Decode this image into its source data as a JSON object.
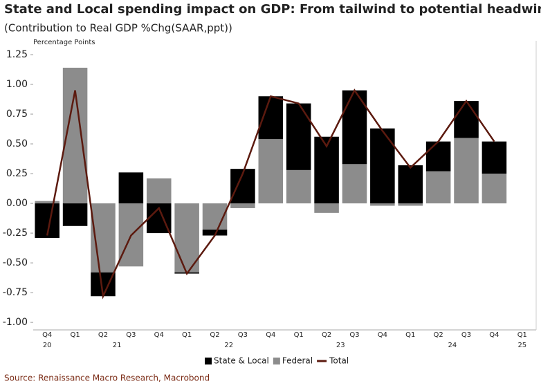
{
  "chart_data": {
    "type": "stacked-bar-line",
    "title": "State and Local spending impact on GDP: From tailwind to potential headwind",
    "subtitle": "(Contribution to Real GDP %Chg(SAAR,ppt))",
    "y_axis_label": "Percentage Points",
    "source": "Source: Renaissance Macro Research, Macrobond",
    "categories": [
      "Q4",
      "Q1",
      "Q2",
      "Q3",
      "Q4",
      "Q1",
      "Q2",
      "Q3",
      "Q4",
      "Q1",
      "Q2",
      "Q3",
      "Q4",
      "Q1",
      "Q2",
      "Q3",
      "Q4",
      "Q1"
    ],
    "years": [
      "20",
      "21",
      "22",
      "23",
      "24",
      "25"
    ],
    "series": [
      {
        "name": "State & Local",
        "color": "#000000",
        "mark": "bar",
        "values": [
          -0.29,
          -0.19,
          -0.2,
          0.26,
          -0.25,
          -0.01,
          -0.05,
          0.29,
          0.36,
          0.56,
          0.56,
          0.62,
          0.63,
          0.32,
          0.25,
          0.31,
          0.27,
          null
        ]
      },
      {
        "name": "Federal",
        "color": "#8c8c8c",
        "mark": "bar",
        "values": [
          0.02,
          1.14,
          -0.58,
          -0.53,
          0.21,
          -0.58,
          -0.22,
          -0.04,
          0.54,
          0.28,
          -0.08,
          0.33,
          -0.02,
          -0.02,
          0.27,
          0.55,
          0.25,
          null
        ]
      },
      {
        "name": "Total",
        "color": "#5c1a0f",
        "mark": "line",
        "values": [
          -0.27,
          0.95,
          -0.78,
          -0.27,
          -0.04,
          -0.59,
          -0.27,
          0.25,
          0.9,
          0.84,
          0.48,
          0.95,
          0.61,
          0.3,
          0.52,
          0.86,
          0.52,
          null
        ]
      }
    ],
    "ylim": [
      -1.04,
      1.25
    ],
    "yticks": [
      1.25,
      {
        "value": 1.0,
        "label": "1.00"
      },
      0.75,
      {
        "value": 0.5,
        "label": "0.50"
      },
      0.25,
      {
        "value": 0,
        "label": "0.00"
      },
      -0.25,
      {
        "value": -0.5,
        "label": "-0.50"
      },
      -0.75,
      {
        "value": -1.0,
        "label": "-1.00"
      }
    ]
  }
}
